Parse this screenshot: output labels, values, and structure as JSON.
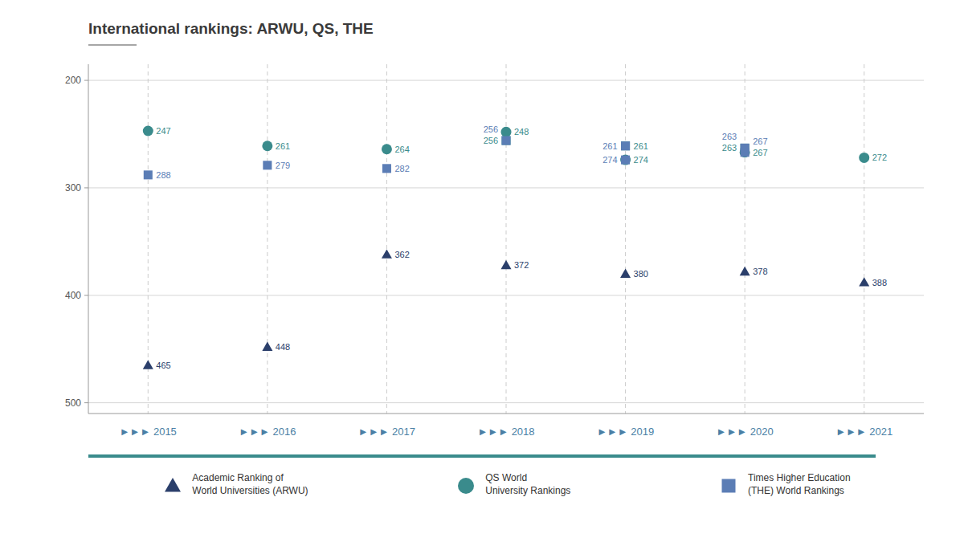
{
  "chart_data": {
    "type": "scatter",
    "title": "International rankings: ARWU, QS, THE",
    "categories": [
      "►►► 2015",
      "►►► 2016",
      "►►► 2017",
      "►►► 2018",
      "►►► 2019",
      "►►► 2020",
      "►►► 2021"
    ],
    "series": [
      {
        "name": "Academic Ranking of\nWorld Universities (ARWU)",
        "color": "#2b3f6b",
        "marker": "triangle",
        "values": [
          465,
          448,
          362,
          372,
          380,
          378,
          388
        ]
      },
      {
        "name": "QS World\nUniversity Rankings",
        "color": "#3a8b8c",
        "marker": "circle",
        "values": [
          247,
          261,
          264,
          248,
          274,
          267,
          272
        ]
      },
      {
        "color": "#3a8b8c",
        "marker": "square",
        "values": [
          null,
          null,
          null,
          256,
          261,
          263,
          null
        ]
      },
      {
        "name": "Times Higher Education\n(THE) World Rankings",
        "color": "#5b7db5",
        "marker": "square",
        "values": [
          288,
          279,
          282,
          null,
          274,
          267,
          null
        ]
      },
      {
        "color": "#5b7db5",
        "marker": "square",
        "values": [
          null,
          null,
          null,
          256,
          261,
          263,
          null
        ]
      }
    ],
    "ylim": [
      510,
      185
    ],
    "yticks": [
      200,
      300,
      400,
      500
    ],
    "grid": true,
    "data_labels": true,
    "legend": "bottom"
  }
}
